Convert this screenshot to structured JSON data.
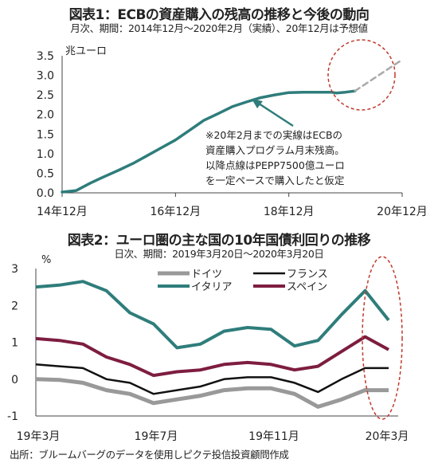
{
  "colors": {
    "teal": "#2e7d7b",
    "gray": "#999999",
    "black": "#111111",
    "maroon": "#7d1d3f",
    "red_circle": "#c0392b"
  },
  "chart_data": [
    {
      "type": "line",
      "title": "図表1：ECBの資産購入の残高の推移と今後の動向",
      "subtitle": "月次、期間：2014年12月～2020年2月（実績）、20年12月は予想値",
      "ylabel": "兆ユーロ",
      "ylim": [
        0,
        3.5
      ],
      "yticks": [
        "0.0",
        "0.5",
        "1.0",
        "1.5",
        "2.0",
        "2.5",
        "3.0",
        "3.5"
      ],
      "xticks": [
        "14年12月",
        "16年12月",
        "18年12月",
        "20年12月"
      ],
      "annotation": "※20年2月までの実線はECBの\n資産購入プログラム月末残高。\n以降点線はPEPP7500億ユーロ\nを一定ペースで購入したと仮定",
      "series": [
        {
          "line": "solid",
          "x": [
            "2014-12",
            "2015-03",
            "2015-06",
            "2015-09",
            "2015-12",
            "2016-03",
            "2016-06",
            "2016-09",
            "2016-12",
            "2017-03",
            "2017-06",
            "2017-09",
            "2017-12",
            "2018-03",
            "2018-06",
            "2018-09",
            "2018-12",
            "2019-03",
            "2019-06",
            "2019-09",
            "2019-10",
            "2019-12",
            "2020-02"
          ],
          "values": [
            0.02,
            0.06,
            0.25,
            0.42,
            0.58,
            0.75,
            0.95,
            1.15,
            1.35,
            1.6,
            1.85,
            2.02,
            2.2,
            2.32,
            2.43,
            2.5,
            2.56,
            2.57,
            2.57,
            2.57,
            2.55,
            2.57,
            2.6
          ]
        },
        {
          "line": "dashed",
          "x": [
            "2020-02",
            "2020-12"
          ],
          "values": [
            2.6,
            3.4
          ]
        }
      ]
    },
    {
      "type": "line",
      "title": "図表2：ユーロ圏の主な国の10年国債利回りの推移",
      "subtitle": "日次、期間：2019年3月20日～2020年3月20日",
      "ylabel": "%",
      "ylim": [
        -1,
        3
      ],
      "yticks": [
        "-1",
        "0",
        "1",
        "2",
        "3"
      ],
      "xticks": [
        "19年3月",
        "19年7月",
        "19年11月",
        "20年3月"
      ],
      "legend_position": "top",
      "x": [
        "2019-03",
        "2019-04",
        "2019-05",
        "2019-06",
        "2019-07",
        "2019-08",
        "2019-09",
        "2019-10",
        "2019-11",
        "2019-12",
        "2020-01",
        "2020-02",
        "2020-03a",
        "2020-03b",
        "2020-03c",
        "2020-03d"
      ],
      "series": [
        {
          "name": "ドイツ",
          "color": "gray",
          "values": [
            0.0,
            -0.02,
            -0.1,
            -0.3,
            -0.4,
            -0.65,
            -0.55,
            -0.45,
            -0.3,
            -0.25,
            -0.25,
            -0.4,
            -0.75,
            -0.55,
            -0.3,
            -0.3
          ]
        },
        {
          "name": "フランス",
          "color": "black",
          "values": [
            0.4,
            0.35,
            0.3,
            0.0,
            -0.1,
            -0.4,
            -0.3,
            -0.2,
            0.0,
            0.05,
            0.05,
            -0.1,
            -0.35,
            0.0,
            0.3,
            0.3
          ]
        },
        {
          "name": "イタリア",
          "color": "teal",
          "values": [
            2.5,
            2.55,
            2.65,
            2.4,
            1.8,
            1.5,
            0.85,
            0.95,
            1.3,
            1.4,
            1.35,
            0.9,
            1.05,
            1.75,
            2.4,
            1.6
          ]
        },
        {
          "name": "スペイン",
          "color": "maroon",
          "values": [
            1.1,
            1.05,
            0.95,
            0.6,
            0.4,
            0.1,
            0.2,
            0.25,
            0.4,
            0.45,
            0.4,
            0.25,
            0.35,
            0.75,
            1.15,
            0.8
          ]
        }
      ]
    }
  ],
  "footer": "出所：ブルームバーグのデータを使用しピクテ投信投資顧問作成"
}
